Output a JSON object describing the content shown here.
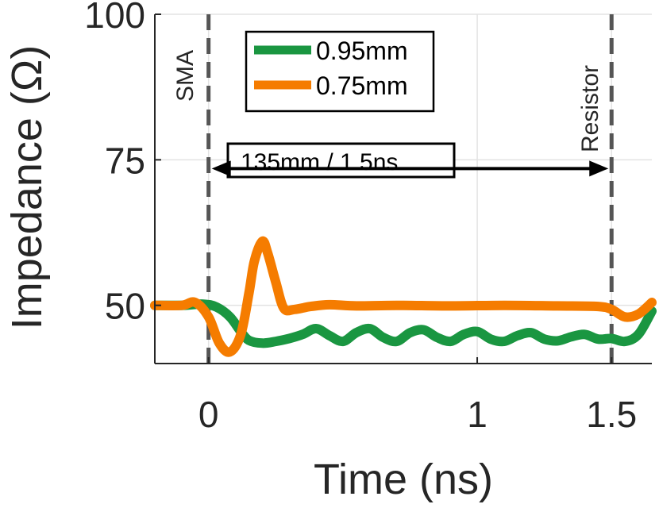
{
  "chart_data": {
    "type": "line",
    "xlabel": "Time (ns)",
    "ylabel": "Impedance (Ω)",
    "xlim": [
      -0.2,
      1.65
    ],
    "ylim": [
      40,
      100
    ],
    "xticks": [
      0,
      1,
      1.5
    ],
    "xtick_labels": [
      "0",
      "1",
      "1.5"
    ],
    "yticks": [
      50,
      75,
      100
    ],
    "ytick_labels": [
      "50",
      "75",
      "100"
    ],
    "grid": true,
    "legend_position": "top",
    "series": [
      {
        "name": "0.95mm",
        "color": "#1a9641",
        "x": [
          -0.2,
          -0.1,
          -0.02,
          0.03,
          0.08,
          0.12,
          0.15,
          0.2,
          0.25,
          0.3,
          0.35,
          0.4,
          0.45,
          0.5,
          0.55,
          0.6,
          0.65,
          0.7,
          0.75,
          0.8,
          0.85,
          0.9,
          0.95,
          1.0,
          1.05,
          1.1,
          1.15,
          1.2,
          1.25,
          1.3,
          1.35,
          1.4,
          1.45,
          1.5,
          1.55,
          1.6,
          1.65
        ],
        "y": [
          50,
          50,
          50.2,
          49.7,
          48,
          45.5,
          44,
          43.5,
          43.8,
          44.3,
          45,
          46,
          44.8,
          43.8,
          45.3,
          46,
          44.5,
          43.8,
          45.3,
          45.8,
          44.5,
          43.8,
          45,
          45.5,
          44.2,
          43.8,
          44.8,
          45.3,
          44.2,
          43.9,
          44.6,
          45,
          44.2,
          44.3,
          43.8,
          45,
          49
        ]
      },
      {
        "name": "0.75mm",
        "color": "#f57c00",
        "x": [
          -0.2,
          -0.1,
          -0.05,
          0.0,
          0.04,
          0.08,
          0.12,
          0.15,
          0.17,
          0.2,
          0.22,
          0.25,
          0.28,
          0.32,
          0.38,
          0.45,
          0.55,
          0.7,
          0.9,
          1.1,
          1.3,
          1.45,
          1.5,
          1.55,
          1.6,
          1.65
        ],
        "y": [
          50,
          50,
          50.5,
          48,
          43.5,
          42,
          45,
          52,
          57.5,
          61,
          59,
          54,
          49.5,
          49.3,
          49.8,
          50.1,
          49.9,
          50,
          49.9,
          50,
          49.9,
          49.8,
          49.3,
          48,
          48.5,
          50.5
        ]
      }
    ],
    "annotations": {
      "sma_label": "SMA",
      "sma_x": 0,
      "resistor_label": "Resistor",
      "resistor_x": 1.5,
      "span_label": "135mm / 1.5ns",
      "span_from": 0,
      "span_to": 1.5,
      "span_y": 73.5
    }
  }
}
